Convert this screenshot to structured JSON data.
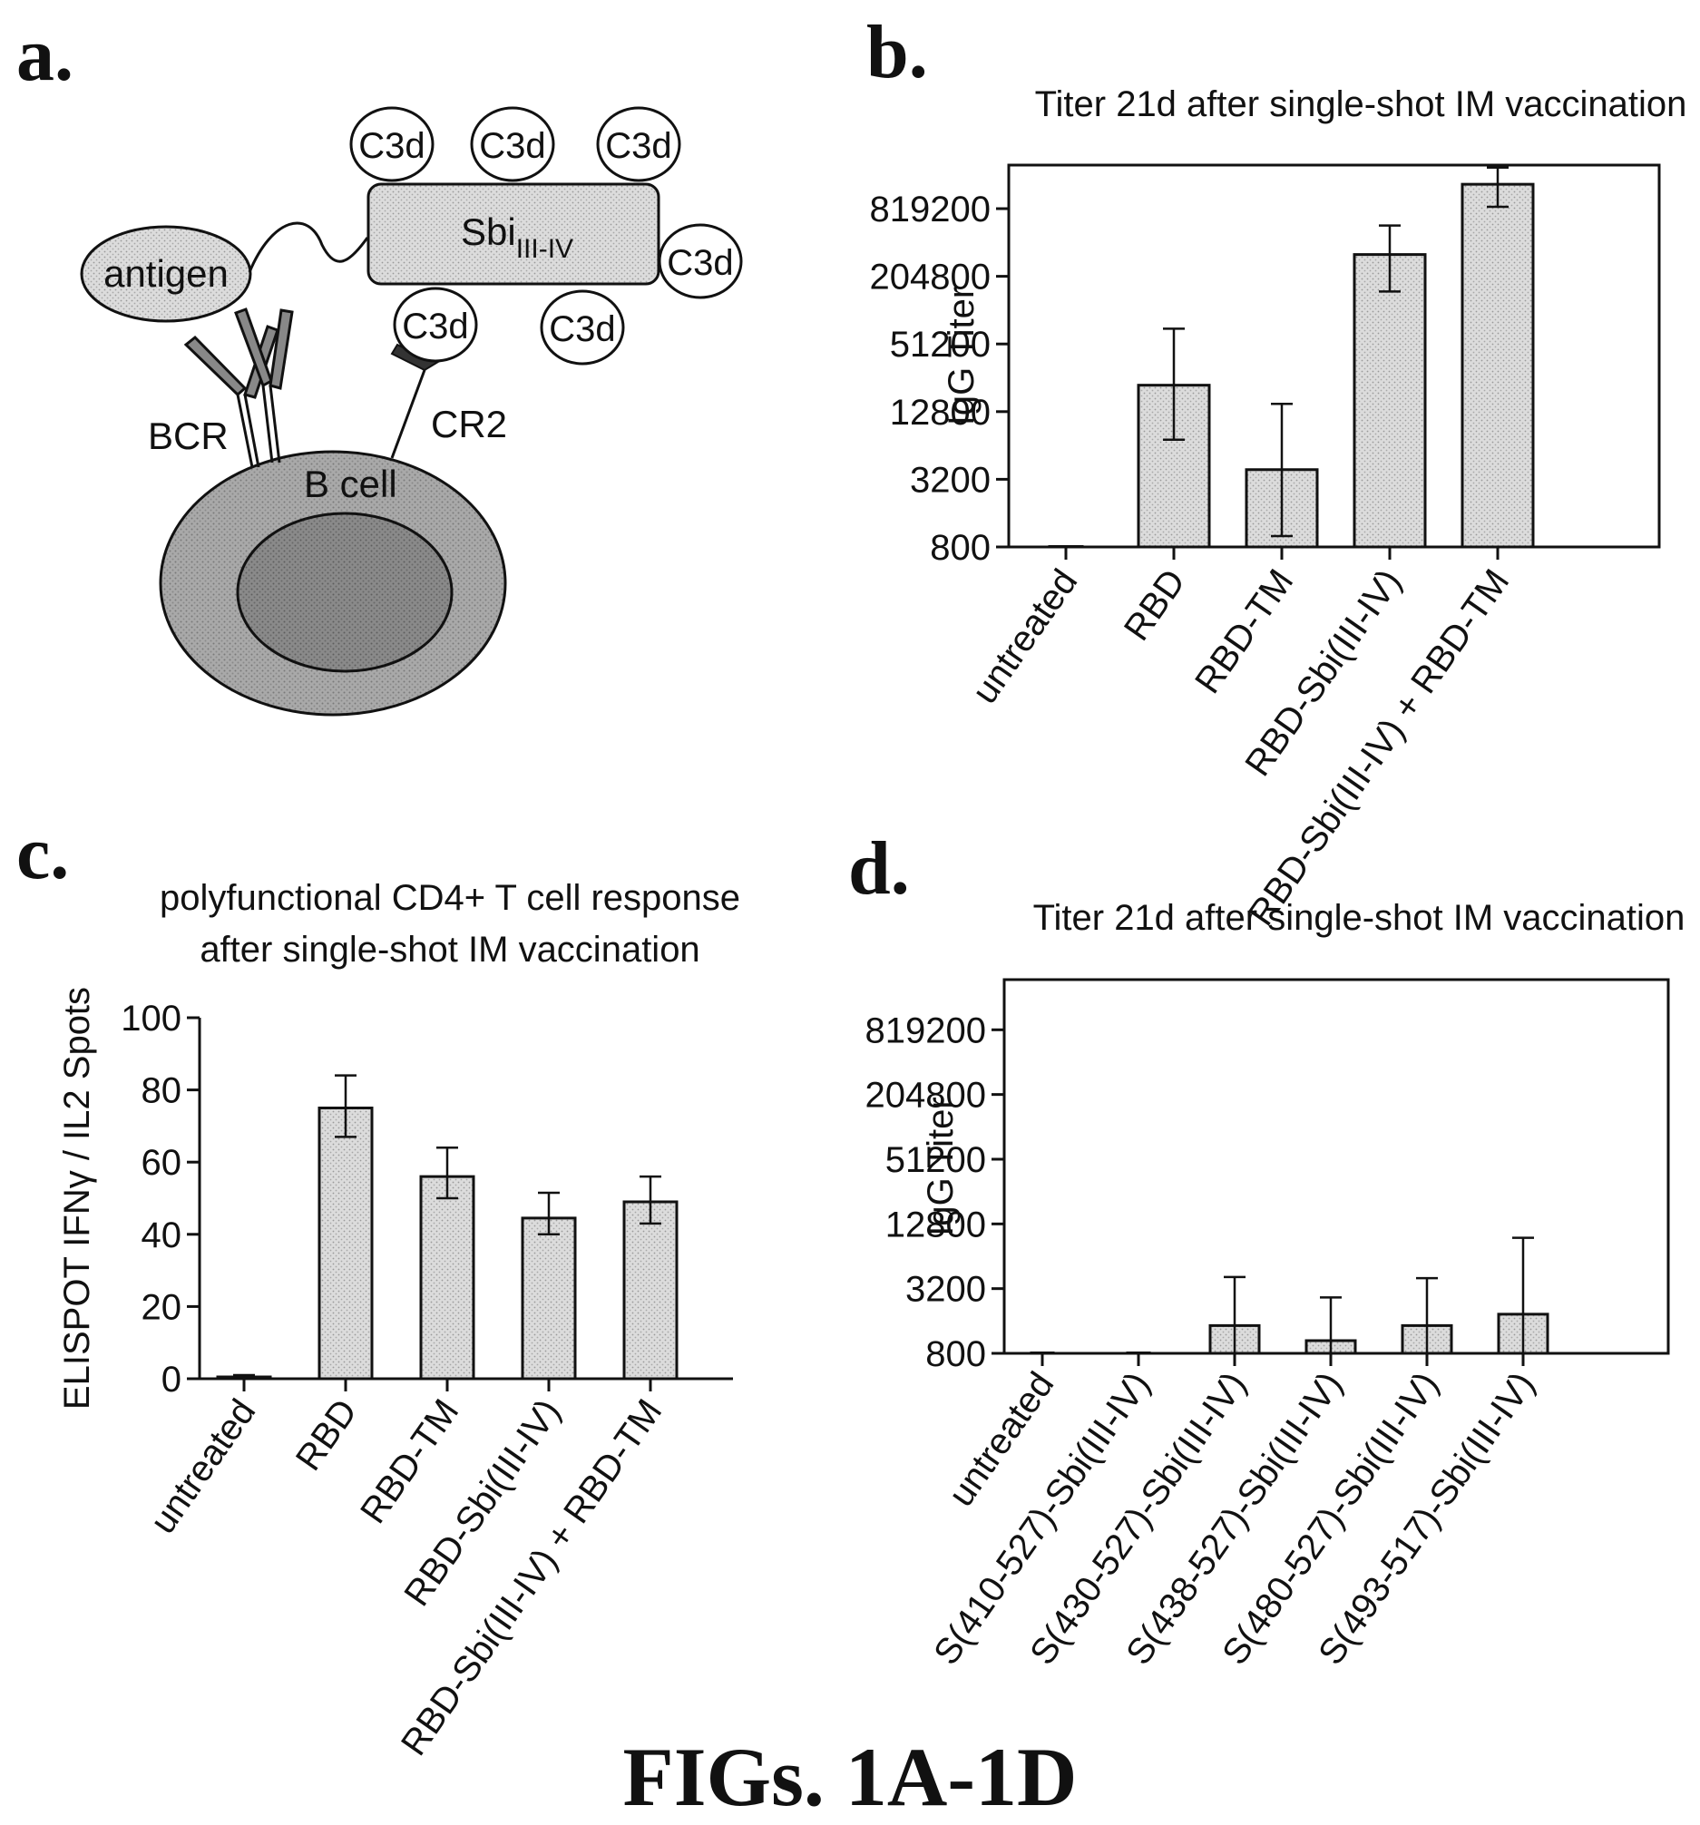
{
  "panels": {
    "a": "a.",
    "b": "b.",
    "c": "c.",
    "d": "d."
  },
  "caption": "FIGs. 1A-1D",
  "diagram": {
    "antigen": "antigen",
    "c3d": "C3d",
    "sbi_main": "Sbi",
    "sbi_sub": "III-IV",
    "bcr": "BCR",
    "cr2": "CR2",
    "b_cell": "B cell"
  },
  "colors": {
    "bar_fill": "#d9d9d9",
    "axis": "#111111"
  },
  "chart_data": [
    {
      "panel": "b",
      "type": "bar",
      "title": [
        "Titer 21d after single-shot IM vaccination"
      ],
      "ylabel": "IgG Titer",
      "yscale": "log2",
      "ylim": [
        800,
        2000000
      ],
      "yticks": [
        800,
        3200,
        12800,
        51200,
        204800,
        819200
      ],
      "ytick_labels": [
        "800",
        "3200",
        "12800",
        "51200",
        "204800",
        "819200"
      ],
      "categories": [
        "untreated",
        "RBD",
        "RBD-TM",
        "RBD-Sbi(III-IV)",
        "RBD-Sbi(III-IV) + RBD-TM"
      ],
      "values": [
        800,
        22000,
        3900,
        320000,
        1350000
      ],
      "error_low": [
        800,
        7200,
        1000,
        150000,
        850000
      ],
      "error_high": [
        800,
        70000,
        15000,
        580000,
        1900000
      ],
      "grid": false
    },
    {
      "panel": "c",
      "type": "bar",
      "title": [
        "polyfunctional CD4+ T cell response",
        "after single-shot IM vaccination"
      ],
      "ylabel": "ELISPOT IFNγ / IL2 Spots",
      "yscale": "linear",
      "ylim": [
        0,
        100
      ],
      "yticks": [
        0,
        20,
        40,
        60,
        80,
        100
      ],
      "ytick_labels": [
        "0",
        "20",
        "40",
        "60",
        "80",
        "100"
      ],
      "categories": [
        "untreated",
        "RBD",
        "RBD-TM",
        "RBD-Sbi(III-IV)",
        "RBD-Sbi(III-IV) + RBD-TM"
      ],
      "values": [
        0.5,
        75,
        56,
        44.5,
        49
      ],
      "error_low": [
        0,
        67,
        50,
        40,
        43
      ],
      "error_high": [
        1,
        84,
        64,
        51.5,
        56
      ],
      "grid": false
    },
    {
      "panel": "d",
      "type": "bar",
      "title": [
        "Titer 21d after single-shot IM vaccination"
      ],
      "ylabel": "IgG Titer",
      "yscale": "log2",
      "ylim": [
        800,
        2400000
      ],
      "yticks": [
        800,
        3200,
        12800,
        51200,
        204800,
        819200
      ],
      "ytick_labels": [
        "800",
        "3200",
        "12800",
        "51200",
        "204800",
        "819200"
      ],
      "categories": [
        "untreated",
        "S(410-527)-Sbi(III-IV)",
        "S(430-527)-Sbi(III-IV)",
        "S(438-527)-Sbi(III-IV)",
        "S(480-527)-Sbi(III-IV)",
        "S(493-517)-Sbi(III-IV)"
      ],
      "values": [
        800,
        800,
        1450,
        1050,
        1450,
        1850
      ],
      "error_low": [
        800,
        800,
        800,
        800,
        800,
        800
      ],
      "error_high": [
        800,
        800,
        4100,
        2650,
        4000,
        9500
      ],
      "grid": false
    }
  ]
}
